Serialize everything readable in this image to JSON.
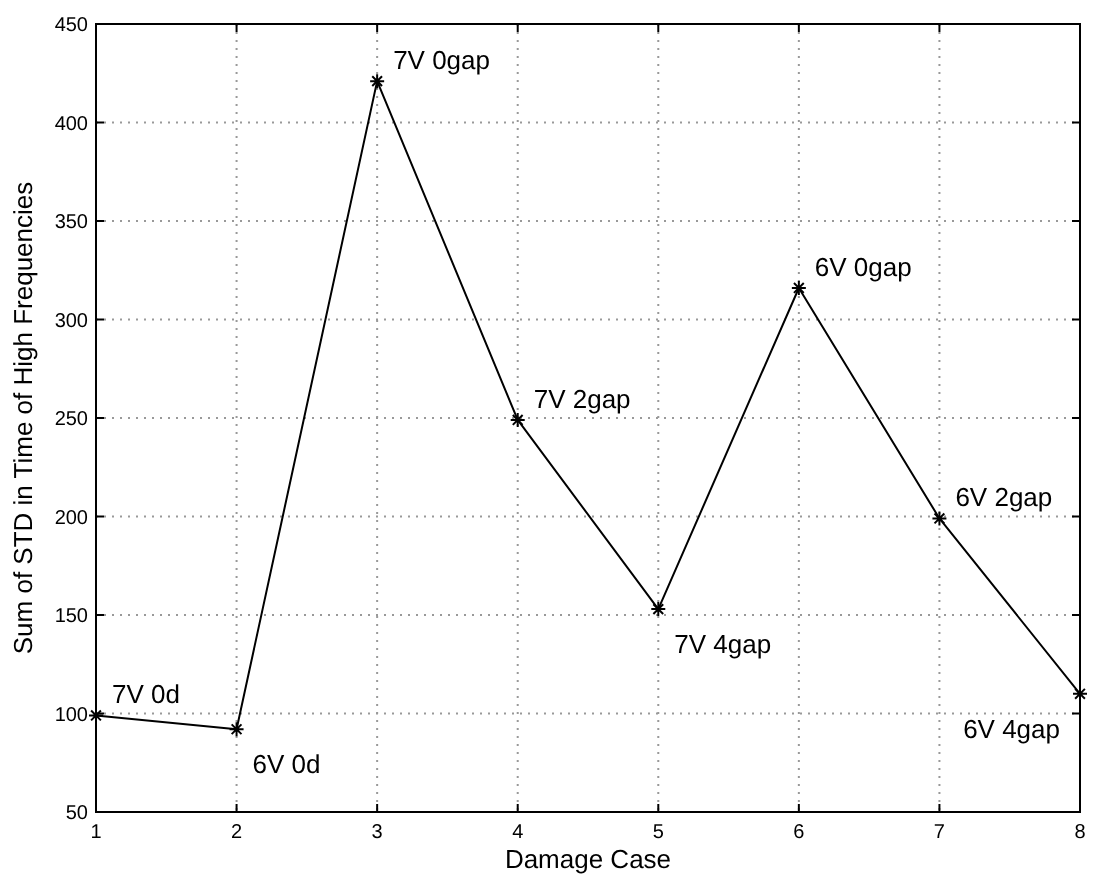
{
  "chart_data": {
    "type": "line",
    "xlabel": "Damage Case",
    "ylabel": "Sum of STD in Time of High Frequencies",
    "x": [
      1,
      2,
      3,
      4,
      5,
      6,
      7,
      8
    ],
    "series": [
      {
        "color": "#000000",
        "values": [
          99,
          92,
          421,
          249,
          153,
          316,
          199,
          110
        ]
      }
    ],
    "xlim": [
      1,
      8
    ],
    "xticks": [
      1,
      2,
      3,
      4,
      5,
      6,
      7,
      8
    ],
    "ylim": [
      50,
      450
    ],
    "yticks": [
      50,
      100,
      150,
      200,
      250,
      300,
      350,
      400,
      450
    ],
    "grid": true,
    "marker": "cross",
    "line_style": "solid",
    "annotations": [
      {
        "text": "7V 0d",
        "x": 1,
        "y": 99
      },
      {
        "text": "6V 0d",
        "x": 2,
        "y": 92
      },
      {
        "text": "7V 0gap",
        "x": 3,
        "y": 421
      },
      {
        "text": "7V 2gap",
        "x": 4,
        "y": 249
      },
      {
        "text": "7V 4gap",
        "x": 5,
        "y": 153
      },
      {
        "text": "6V 0gap",
        "x": 6,
        "y": 316
      },
      {
        "text": "6V 2gap",
        "x": 7,
        "y": 199
      },
      {
        "text": "6V 4gap",
        "x": 8,
        "y": 110
      }
    ]
  }
}
